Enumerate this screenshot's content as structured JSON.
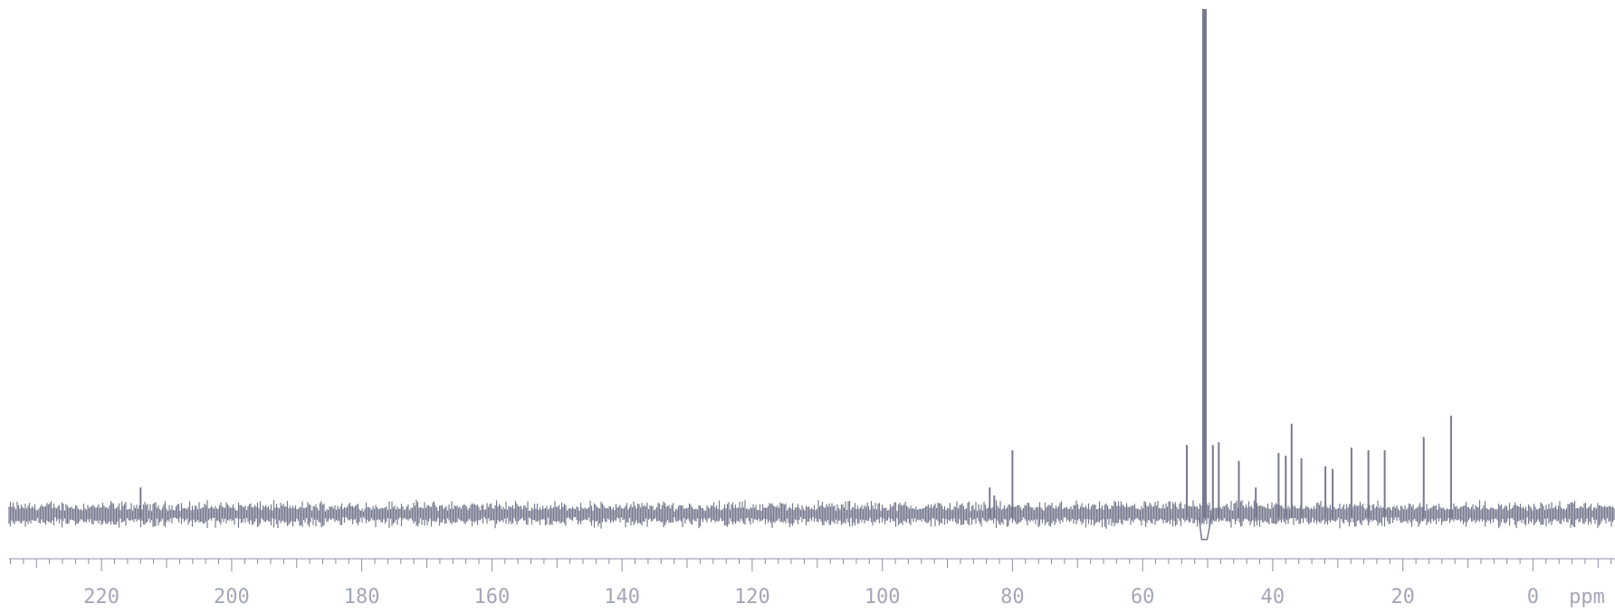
{
  "chart_data": {
    "type": "line",
    "title": "",
    "xlabel": "",
    "ylabel": "",
    "x_unit": "ppm",
    "x_reversed": true,
    "xlim": [
      235.6,
      -12.6
    ],
    "ylim": [
      0,
      100
    ],
    "baseline_level": 5,
    "grid": false,
    "legend": "none",
    "line_color": "#777a8f",
    "tick_label_color": "#a3a6b8",
    "ticks": [
      "220",
      "200",
      "180",
      "160",
      "140",
      "120",
      "100",
      "80",
      "60",
      "40",
      "20",
      "0"
    ],
    "tick_values": [
      220,
      200,
      180,
      160,
      140,
      120,
      100,
      80,
      60,
      40,
      20,
      0
    ],
    "peaks": [
      {
        "x": 214.0,
        "y": 10
      },
      {
        "x": 117.0,
        "y": 4
      },
      {
        "x": 83.5,
        "y": 10
      },
      {
        "x": 82.8,
        "y": 8.5
      },
      {
        "x": 80.0,
        "y": 17
      },
      {
        "x": 53.2,
        "y": 18
      },
      {
        "x": 50.5,
        "y": 100
      },
      {
        "x": 49.2,
        "y": 18
      },
      {
        "x": 48.3,
        "y": 18.5
      },
      {
        "x": 45.2,
        "y": 15
      },
      {
        "x": 42.6,
        "y": 10
      },
      {
        "x": 39.1,
        "y": 16.5
      },
      {
        "x": 38.0,
        "y": 16
      },
      {
        "x": 37.1,
        "y": 22
      },
      {
        "x": 35.6,
        "y": 15.5
      },
      {
        "x": 31.9,
        "y": 14
      },
      {
        "x": 30.8,
        "y": 13.5
      },
      {
        "x": 27.9,
        "y": 17.5
      },
      {
        "x": 25.3,
        "y": 17
      },
      {
        "x": 22.8,
        "y": 17
      },
      {
        "x": 16.8,
        "y": 19.5
      },
      {
        "x": 12.6,
        "y": 23.5
      }
    ]
  }
}
